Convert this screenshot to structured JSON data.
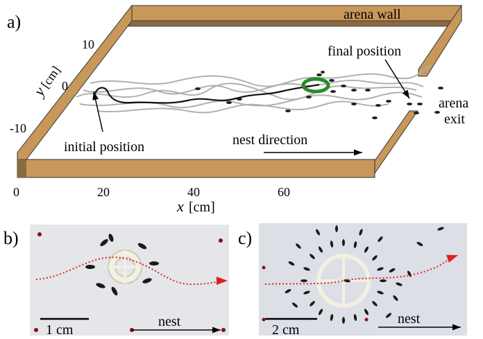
{
  "panel_a": {
    "label": "a)",
    "wall_label": "arena wall",
    "final_label": "final position",
    "exit_label_1": "arena",
    "exit_label_2": "exit",
    "initial_label": "initial position",
    "nest_label": "nest direction",
    "x_axis_label": "x",
    "x_axis_unit": "[cm]",
    "y_axis_label": "y",
    "y_axis_unit": "[cm]",
    "x_ticks": [
      "0",
      "20",
      "40",
      "60"
    ],
    "y_ticks": [
      "10",
      "0",
      "-10"
    ],
    "colors": {
      "wall": "#c8975a",
      "wall_dark": "#8a6a40",
      "ring": "#2a8a2a",
      "trajectory_gray": "#b0b0b0"
    }
  },
  "panel_b": {
    "label": "b)",
    "scale_label": "1 cm",
    "nest_label": "nest"
  },
  "panel_c": {
    "label": "c)",
    "scale_label": "2 cm",
    "nest_label": "nest"
  }
}
